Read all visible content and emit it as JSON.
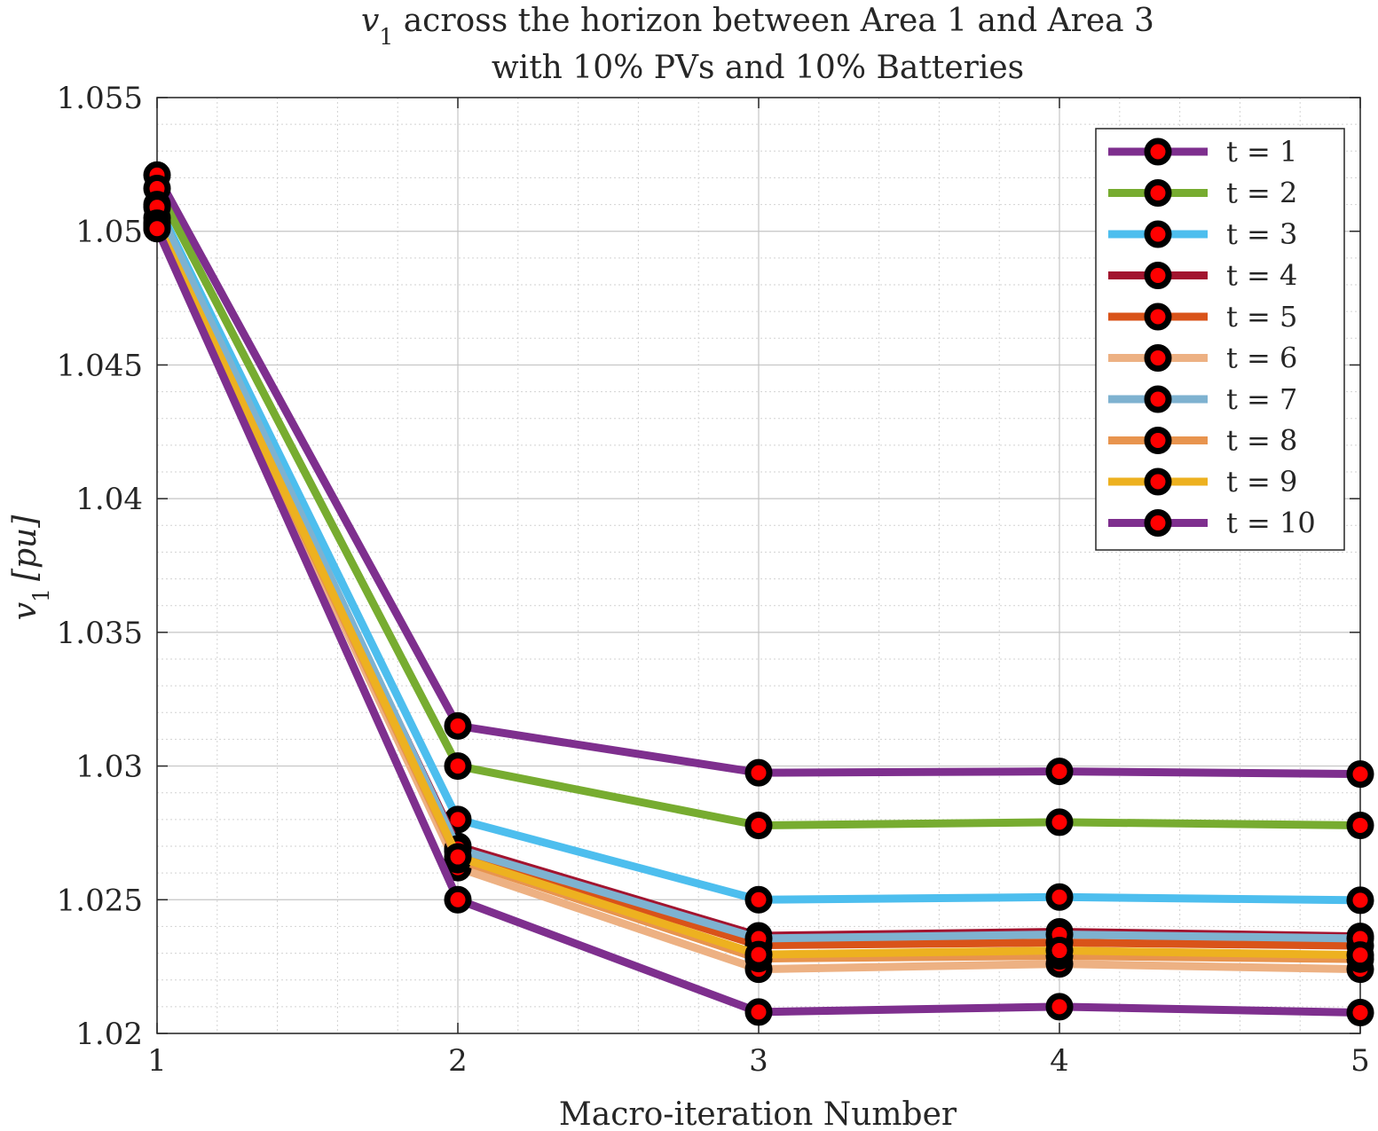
{
  "chart_data": {
    "type": "line",
    "title_prefix": "v",
    "title_subscript": "1",
    "title_line1": " across the horizon between Area 1 and Area 3",
    "title_line2": "with 10% PVs and 10% Batteries",
    "xlabel": "Macro-iteration Number",
    "ylabel_var": "v",
    "ylabel_sub": "1",
    "ylabel_unit": "[pu]",
    "x": [
      1,
      2,
      3,
      4,
      5
    ],
    "xlim": [
      1,
      5
    ],
    "ylim": [
      1.02,
      1.055
    ],
    "xticks": [
      1,
      2,
      3,
      4,
      5
    ],
    "xtick_labels": [
      "1",
      "2",
      "3",
      "4",
      "5"
    ],
    "yticks": [
      1.02,
      1.025,
      1.03,
      1.035,
      1.04,
      1.045,
      1.05,
      1.055
    ],
    "ytick_labels": [
      "1.02",
      "1.025",
      "1.03",
      "1.035",
      "1.04",
      "1.045",
      "1.05",
      "1.055"
    ],
    "grid": true,
    "minor_grid": true,
    "legend_position": "top-right",
    "marker": "circle-black-with-red-center",
    "series": [
      {
        "name": "t = 1",
        "color": "#7E2F8E",
        "values": [
          1.0521,
          1.0315,
          1.02975,
          1.0298,
          1.0297
        ]
      },
      {
        "name": "t = 2",
        "color": "#77AC30",
        "values": [
          1.0516,
          1.03,
          1.02778,
          1.0279,
          1.02778
        ]
      },
      {
        "name": "t = 3",
        "color": "#4DBEEE",
        "values": [
          1.051,
          1.028,
          1.025,
          1.0251,
          1.02498
        ]
      },
      {
        "name": "t = 4",
        "color": "#A2142F",
        "values": [
          1.0505,
          1.027,
          1.02365,
          1.0238,
          1.02363
        ]
      },
      {
        "name": "t = 5",
        "color": "#D95319",
        "values": [
          1.0503,
          1.0268,
          1.0233,
          1.0234,
          1.02328
        ]
      },
      {
        "name": "t = 6",
        "color": "#EDB183",
        "values": [
          1.0501,
          1.0262,
          1.0224,
          1.0226,
          1.0224
        ]
      },
      {
        "name": "t = 7",
        "color": "#7EB2D0",
        "values": [
          1.0509,
          1.0269,
          1.02355,
          1.0237,
          1.02355
        ]
      },
      {
        "name": "t = 8",
        "color": "#E8944E",
        "values": [
          1.0502,
          1.0265,
          1.0228,
          1.0229,
          1.02278
        ]
      },
      {
        "name": "t = 9",
        "color": "#EDB120",
        "values": [
          1.0503,
          1.0266,
          1.02295,
          1.0231,
          1.02293
        ]
      },
      {
        "name": "t = 10",
        "color": "#7E2F8E",
        "values": [
          1.0501,
          1.025,
          1.0208,
          1.021,
          1.02078
        ]
      }
    ]
  }
}
